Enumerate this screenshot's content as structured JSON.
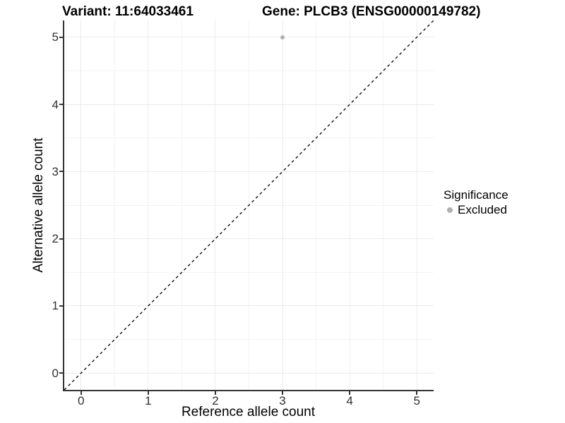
{
  "header": {
    "title_left": "Variant: 11:64033461",
    "title_right": "Gene: PLCB3 (ENSG00000149782)"
  },
  "chart_data": {
    "type": "scatter",
    "xlabel": "Reference allele count",
    "ylabel": "Alternative allele count",
    "xlim": [
      -0.25,
      5.25
    ],
    "ylim": [
      -0.25,
      5.25
    ],
    "x_ticks": [
      0,
      1,
      2,
      3,
      4,
      5
    ],
    "y_ticks": [
      0,
      1,
      2,
      3,
      4,
      5
    ],
    "minor_grid_step": 0.5,
    "grid": "on",
    "points": [
      {
        "x": 3,
        "y": 5,
        "series": "Excluded"
      }
    ],
    "reference_line": {
      "kind": "y=x",
      "style": "dashed"
    },
    "legend": {
      "title": "Significance",
      "position": "right",
      "entries": [
        {
          "label": "Excluded",
          "color": "#b0b0b0"
        }
      ]
    }
  },
  "colors": {
    "background": "#ffffff",
    "title_text": "#000000",
    "axis_text": "#303030",
    "axis_line": "#333333",
    "grid_major": "#ebebeb",
    "grid_minor": "#f3f3f3",
    "point": "#b0b0b0",
    "reference_line": "#000000"
  }
}
